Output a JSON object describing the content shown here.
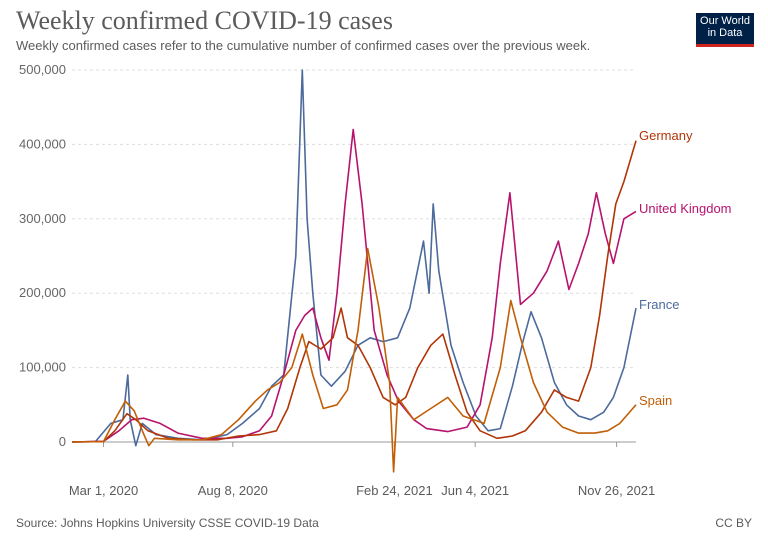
{
  "header": {
    "title": "Weekly confirmed COVID-19 cases",
    "subtitle": "Weekly confirmed cases refer to the cumulative number of confirmed cases over the previous week.",
    "logo_line1": "Our World",
    "logo_line2": "in Data"
  },
  "footer": {
    "source": "Source: Johns Hopkins University CSSE COVID-19 Data",
    "license": "CC BY"
  },
  "chart_data": {
    "type": "line",
    "title": "Weekly confirmed COVID-19 cases",
    "subtitle": "Weekly confirmed cases refer to the cumulative number of confirmed cases over the previous week.",
    "xlabel": "",
    "ylabel": "",
    "xlim": [
      "2020-01-22",
      "2021-12-20"
    ],
    "ylim": [
      0,
      500000
    ],
    "x_ticks": [
      "Mar 1, 2020",
      "Aug 8, 2020",
      "Feb 24, 2021",
      "Jun 4, 2021",
      "Nov 26, 2021"
    ],
    "y_ticks": [
      "0",
      "100,000",
      "200,000",
      "300,000",
      "400,000",
      "500,000"
    ],
    "grid": "horizontal dashed",
    "legend": "labels at line ends (right)",
    "series": [
      {
        "name": "France",
        "color": "#4c6a9c",
        "points": [
          [
            "2020-01-22",
            0
          ],
          [
            "2020-02-20",
            500
          ],
          [
            "2020-03-10",
            25000
          ],
          [
            "2020-03-25",
            30000
          ],
          [
            "2020-03-31",
            90000
          ],
          [
            "2020-04-03",
            30000
          ],
          [
            "2020-04-10",
            -5000
          ],
          [
            "2020-04-18",
            25000
          ],
          [
            "2020-05-05",
            10000
          ],
          [
            "2020-06-01",
            5000
          ],
          [
            "2020-07-01",
            3000
          ],
          [
            "2020-08-01",
            10000
          ],
          [
            "2020-08-20",
            25000
          ],
          [
            "2020-09-10",
            45000
          ],
          [
            "2020-09-25",
            75000
          ],
          [
            "2020-10-10",
            90000
          ],
          [
            "2020-10-25",
            250000
          ],
          [
            "2020-11-02",
            500000
          ],
          [
            "2020-11-08",
            300000
          ],
          [
            "2020-11-15",
            200000
          ],
          [
            "2020-11-25",
            90000
          ],
          [
            "2020-12-08",
            75000
          ],
          [
            "2020-12-25",
            95000
          ],
          [
            "2021-01-10",
            130000
          ],
          [
            "2021-01-25",
            140000
          ],
          [
            "2021-02-10",
            135000
          ],
          [
            "2021-02-28",
            140000
          ],
          [
            "2021-03-15",
            180000
          ],
          [
            "2021-04-01",
            270000
          ],
          [
            "2021-04-08",
            200000
          ],
          [
            "2021-04-13",
            320000
          ],
          [
            "2021-04-20",
            230000
          ],
          [
            "2021-05-05",
            130000
          ],
          [
            "2021-05-20",
            80000
          ],
          [
            "2021-06-05",
            35000
          ],
          [
            "2021-06-20",
            15000
          ],
          [
            "2021-07-05",
            18000
          ],
          [
            "2021-07-20",
            75000
          ],
          [
            "2021-08-02",
            135000
          ],
          [
            "2021-08-12",
            175000
          ],
          [
            "2021-08-25",
            140000
          ],
          [
            "2021-09-10",
            80000
          ],
          [
            "2021-09-25",
            50000
          ],
          [
            "2021-10-10",
            35000
          ],
          [
            "2021-10-25",
            30000
          ],
          [
            "2021-11-10",
            40000
          ],
          [
            "2021-11-22",
            60000
          ],
          [
            "2021-12-05",
            100000
          ],
          [
            "2021-12-20",
            180000
          ]
        ]
      },
      {
        "name": "United Kingdom",
        "color": "#b7136e",
        "points": [
          [
            "2020-01-22",
            0
          ],
          [
            "2020-03-01",
            1000
          ],
          [
            "2020-03-20",
            15000
          ],
          [
            "2020-04-05",
            30000
          ],
          [
            "2020-04-20",
            32000
          ],
          [
            "2020-05-10",
            25000
          ],
          [
            "2020-06-01",
            12000
          ],
          [
            "2020-07-01",
            5000
          ],
          [
            "2020-08-01",
            5000
          ],
          [
            "2020-08-20",
            7000
          ],
          [
            "2020-09-10",
            15000
          ],
          [
            "2020-09-25",
            35000
          ],
          [
            "2020-10-10",
            90000
          ],
          [
            "2020-10-25",
            150000
          ],
          [
            "2020-11-05",
            170000
          ],
          [
            "2020-11-15",
            180000
          ],
          [
            "2020-11-25",
            140000
          ],
          [
            "2020-12-05",
            110000
          ],
          [
            "2020-12-15",
            200000
          ],
          [
            "2020-12-25",
            320000
          ],
          [
            "2021-01-04",
            420000
          ],
          [
            "2021-01-15",
            320000
          ],
          [
            "2021-01-30",
            150000
          ],
          [
            "2021-02-15",
            90000
          ],
          [
            "2021-03-01",
            55000
          ],
          [
            "2021-03-20",
            30000
          ],
          [
            "2021-04-05",
            18000
          ],
          [
            "2021-05-01",
            14000
          ],
          [
            "2021-05-25",
            20000
          ],
          [
            "2021-06-10",
            50000
          ],
          [
            "2021-06-25",
            140000
          ],
          [
            "2021-07-05",
            240000
          ],
          [
            "2021-07-17",
            335000
          ],
          [
            "2021-07-30",
            185000
          ],
          [
            "2021-08-15",
            200000
          ],
          [
            "2021-09-01",
            230000
          ],
          [
            "2021-09-15",
            270000
          ],
          [
            "2021-09-28",
            205000
          ],
          [
            "2021-10-10",
            240000
          ],
          [
            "2021-10-22",
            280000
          ],
          [
            "2021-11-01",
            335000
          ],
          [
            "2021-11-12",
            280000
          ],
          [
            "2021-11-22",
            240000
          ],
          [
            "2021-12-05",
            300000
          ],
          [
            "2021-12-20",
            310000
          ]
        ]
      },
      {
        "name": "Germany",
        "color": "#b13507",
        "points": [
          [
            "2020-01-22",
            0
          ],
          [
            "2020-03-01",
            500
          ],
          [
            "2020-03-15",
            15000
          ],
          [
            "2020-03-30",
            38000
          ],
          [
            "2020-04-10",
            30000
          ],
          [
            "2020-04-25",
            15000
          ],
          [
            "2020-05-20",
            5000
          ],
          [
            "2020-06-20",
            3000
          ],
          [
            "2020-07-20",
            3000
          ],
          [
            "2020-08-15",
            8000
          ],
          [
            "2020-09-10",
            10000
          ],
          [
            "2020-10-01",
            15000
          ],
          [
            "2020-10-15",
            45000
          ],
          [
            "2020-10-30",
            100000
          ],
          [
            "2020-11-10",
            135000
          ],
          [
            "2020-11-25",
            125000
          ],
          [
            "2020-12-10",
            140000
          ],
          [
            "2020-12-20",
            180000
          ],
          [
            "2020-12-28",
            140000
          ],
          [
            "2021-01-10",
            130000
          ],
          [
            "2021-01-25",
            100000
          ],
          [
            "2021-02-10",
            60000
          ],
          [
            "2021-02-25",
            50000
          ],
          [
            "2021-03-10",
            60000
          ],
          [
            "2021-03-25",
            100000
          ],
          [
            "2021-04-10",
            130000
          ],
          [
            "2021-04-25",
            145000
          ],
          [
            "2021-05-10",
            90000
          ],
          [
            "2021-05-25",
            40000
          ],
          [
            "2021-06-10",
            15000
          ],
          [
            "2021-07-01",
            5000
          ],
          [
            "2021-07-20",
            8000
          ],
          [
            "2021-08-05",
            15000
          ],
          [
            "2021-08-25",
            40000
          ],
          [
            "2021-09-10",
            70000
          ],
          [
            "2021-09-25",
            60000
          ],
          [
            "2021-10-10",
            55000
          ],
          [
            "2021-10-25",
            100000
          ],
          [
            "2021-11-05",
            170000
          ],
          [
            "2021-11-15",
            250000
          ],
          [
            "2021-11-25",
            320000
          ],
          [
            "2021-12-05",
            350000
          ],
          [
            "2021-12-20",
            405000
          ]
        ]
      },
      {
        "name": "Spain",
        "color": "#c15f08",
        "points": [
          [
            "2020-01-22",
            0
          ],
          [
            "2020-03-01",
            500
          ],
          [
            "2020-03-15",
            30000
          ],
          [
            "2020-03-28",
            55000
          ],
          [
            "2020-04-08",
            42000
          ],
          [
            "2020-04-20",
            10000
          ],
          [
            "2020-04-26",
            -5000
          ],
          [
            "2020-05-03",
            5000
          ],
          [
            "2020-06-01",
            3000
          ],
          [
            "2020-07-01",
            3000
          ],
          [
            "2020-07-25",
            10000
          ],
          [
            "2020-08-15",
            30000
          ],
          [
            "2020-09-05",
            55000
          ],
          [
            "2020-09-20",
            70000
          ],
          [
            "2020-10-05",
            80000
          ],
          [
            "2020-10-20",
            100000
          ],
          [
            "2020-11-02",
            145000
          ],
          [
            "2020-11-15",
            90000
          ],
          [
            "2020-11-28",
            45000
          ],
          [
            "2020-12-15",
            50000
          ],
          [
            "2020-12-28",
            70000
          ],
          [
            "2021-01-10",
            150000
          ],
          [
            "2021-01-22",
            260000
          ],
          [
            "2021-02-05",
            180000
          ],
          [
            "2021-02-18",
            80000
          ],
          [
            "2021-02-23",
            -40000
          ],
          [
            "2021-02-28",
            60000
          ],
          [
            "2021-03-20",
            30000
          ],
          [
            "2021-04-10",
            45000
          ],
          [
            "2021-05-01",
            60000
          ],
          [
            "2021-05-20",
            35000
          ],
          [
            "2021-06-15",
            25000
          ],
          [
            "2021-07-05",
            100000
          ],
          [
            "2021-07-18",
            190000
          ],
          [
            "2021-07-30",
            140000
          ],
          [
            "2021-08-15",
            80000
          ],
          [
            "2021-09-01",
            40000
          ],
          [
            "2021-09-20",
            20000
          ],
          [
            "2021-10-10",
            12000
          ],
          [
            "2021-10-30",
            12000
          ],
          [
            "2021-11-15",
            15000
          ],
          [
            "2021-11-30",
            25000
          ],
          [
            "2021-12-20",
            50000
          ]
        ]
      }
    ]
  }
}
